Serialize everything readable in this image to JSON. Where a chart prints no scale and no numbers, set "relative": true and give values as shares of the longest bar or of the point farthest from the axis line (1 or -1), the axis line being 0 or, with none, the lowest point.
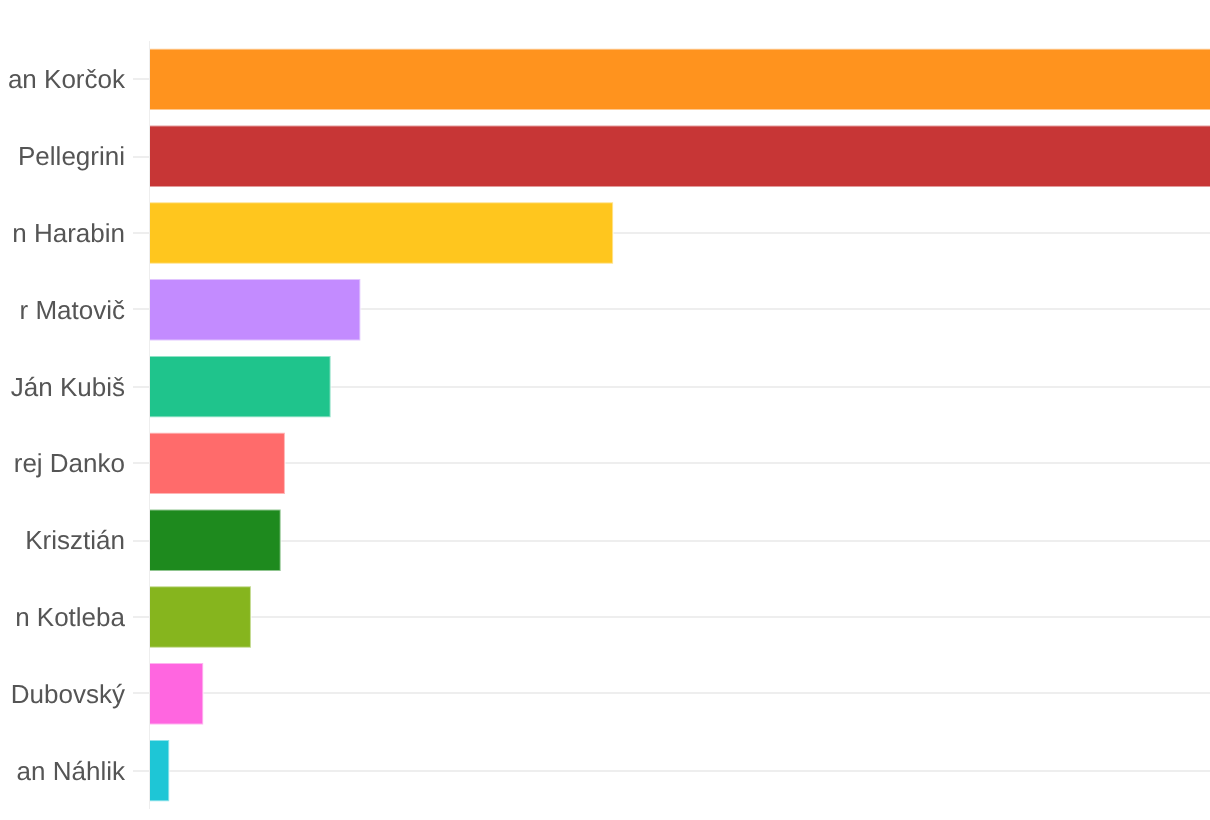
{
  "chart_data": {
    "type": "bar",
    "orientation": "horizontal",
    "relative": true,
    "grid": "y",
    "categories": [
      "an Korčok",
      "Pellegrini",
      "n Harabin",
      "r Matovič",
      "Ján Kubiš",
      "rej Danko",
      "Krisztián",
      "n Kotleba",
      "Dubovský",
      "an Náhlik"
    ],
    "values": [
      1,
      1,
      0.437,
      0.199,
      0.171,
      0.128,
      0.124,
      0.096,
      0.051,
      0.019
    ],
    "colors": [
      "#ff931e",
      "#c73636",
      "#ffc61e",
      "#c38bff",
      "#1fc48c",
      "#ff6b6b",
      "#1e8a1e",
      "#86b51e",
      "#ff66e0",
      "#1ec6d6"
    ]
  }
}
